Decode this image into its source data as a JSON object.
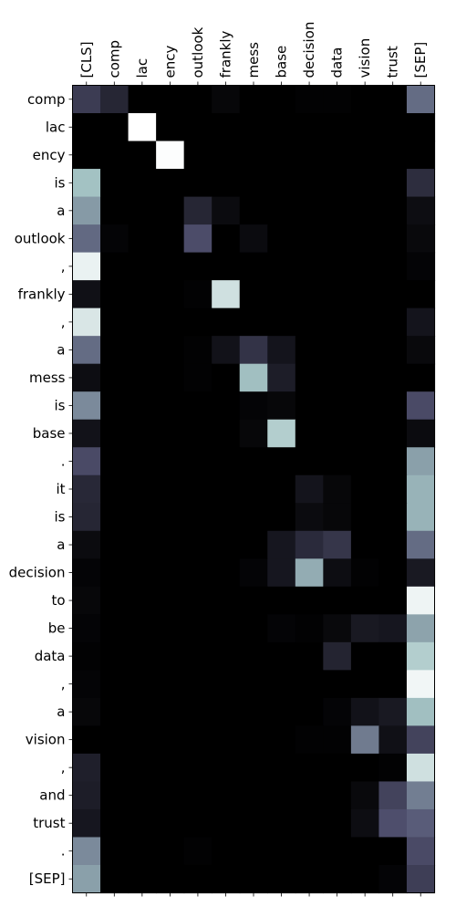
{
  "chart_data": {
    "type": "heatmap",
    "colormap": "bone",
    "x_tokens": [
      "[CLS]",
      "comp",
      "lac",
      "ency",
      "outlook",
      "frankly",
      "mess",
      "base",
      "decision",
      "data",
      "vision",
      "trust",
      "[SEP]"
    ],
    "y_tokens": [
      "comp",
      "lac",
      "ency",
      "is",
      "a",
      "outlook",
      ",",
      "frankly",
      ",",
      "a",
      "mess",
      "is",
      "base",
      ".",
      "it",
      "is",
      "a",
      "decision",
      "to",
      "be",
      "data",
      ",",
      "a",
      "vision",
      ",",
      "and",
      "trust",
      ".",
      "[SEP]"
    ],
    "value_range": [
      0,
      1
    ],
    "values": [
      [
        0.27,
        0.17,
        0.0,
        0.0,
        0.0,
        0.03,
        0.0,
        0.0,
        0.01,
        0.01,
        0.0,
        0.0,
        0.45
      ],
      [
        0.0,
        0.0,
        1.0,
        0.0,
        0.0,
        0.0,
        0.0,
        0.0,
        0.0,
        0.0,
        0.0,
        0.0,
        0.0
      ],
      [
        0.0,
        0.0,
        0.0,
        0.99,
        0.0,
        0.0,
        0.0,
        0.0,
        0.0,
        0.0,
        0.0,
        0.0,
        0.0
      ],
      [
        0.73,
        0.0,
        0.0,
        0.0,
        0.0,
        0.0,
        0.0,
        0.0,
        0.0,
        0.0,
        0.0,
        0.0,
        0.2
      ],
      [
        0.6,
        0.0,
        0.0,
        0.0,
        0.17,
        0.05,
        0.0,
        0.0,
        0.0,
        0.0,
        0.0,
        0.0,
        0.06
      ],
      [
        0.44,
        0.02,
        0.0,
        0.0,
        0.34,
        0.0,
        0.05,
        0.0,
        0.0,
        0.0,
        0.0,
        0.0,
        0.04
      ],
      [
        0.94,
        0.0,
        0.0,
        0.0,
        0.0,
        0.0,
        0.0,
        0.0,
        0.0,
        0.0,
        0.0,
        0.0,
        0.02
      ],
      [
        0.07,
        0.0,
        0.0,
        0.0,
        0.01,
        0.86,
        0.0,
        0.0,
        0.0,
        0.0,
        0.0,
        0.0,
        0.0
      ],
      [
        0.89,
        0.0,
        0.0,
        0.0,
        0.0,
        0.0,
        0.0,
        0.0,
        0.0,
        0.0,
        0.0,
        0.0,
        0.09
      ],
      [
        0.45,
        0.0,
        0.0,
        0.0,
        0.01,
        0.08,
        0.23,
        0.09,
        0.0,
        0.0,
        0.0,
        0.0,
        0.04
      ],
      [
        0.06,
        0.0,
        0.0,
        0.0,
        0.01,
        0.0,
        0.72,
        0.13,
        0.0,
        0.0,
        0.0,
        0.0,
        0.0
      ],
      [
        0.55,
        0.0,
        0.0,
        0.0,
        0.0,
        0.0,
        0.02,
        0.03,
        0.0,
        0.0,
        0.0,
        0.0,
        0.33
      ],
      [
        0.08,
        0.0,
        0.0,
        0.0,
        0.0,
        0.0,
        0.03,
        0.78,
        0.0,
        0.0,
        0.0,
        0.0,
        0.05
      ],
      [
        0.33,
        0.0,
        0.0,
        0.0,
        0.0,
        0.0,
        0.0,
        0.0,
        0.0,
        0.0,
        0.0,
        0.0,
        0.62
      ],
      [
        0.18,
        0.0,
        0.0,
        0.0,
        0.0,
        0.0,
        0.0,
        0.0,
        0.09,
        0.03,
        0.0,
        0.0,
        0.68
      ],
      [
        0.17,
        0.0,
        0.0,
        0.0,
        0.0,
        0.0,
        0.0,
        0.0,
        0.05,
        0.03,
        0.0,
        0.0,
        0.68
      ],
      [
        0.05,
        0.0,
        0.0,
        0.0,
        0.0,
        0.0,
        0.0,
        0.1,
        0.19,
        0.24,
        0.0,
        0.0,
        0.45
      ],
      [
        0.02,
        0.0,
        0.0,
        0.0,
        0.0,
        0.0,
        0.02,
        0.1,
        0.66,
        0.06,
        0.01,
        0.0,
        0.11
      ],
      [
        0.03,
        0.0,
        0.0,
        0.0,
        0.0,
        0.0,
        0.0,
        0.0,
        0.0,
        0.0,
        0.0,
        0.0,
        0.95
      ],
      [
        0.02,
        0.0,
        0.0,
        0.0,
        0.0,
        0.0,
        0.0,
        0.02,
        0.01,
        0.04,
        0.11,
        0.1,
        0.63
      ],
      [
        0.01,
        0.0,
        0.0,
        0.0,
        0.0,
        0.0,
        0.0,
        0.0,
        0.0,
        0.16,
        0.0,
        0.0,
        0.78
      ],
      [
        0.02,
        0.0,
        0.0,
        0.0,
        0.0,
        0.0,
        0.0,
        0.0,
        0.0,
        0.0,
        0.0,
        0.0,
        0.96
      ],
      [
        0.03,
        0.0,
        0.0,
        0.0,
        0.0,
        0.0,
        0.0,
        0.0,
        0.0,
        0.02,
        0.08,
        0.11,
        0.72
      ],
      [
        0.0,
        0.0,
        0.0,
        0.0,
        0.0,
        0.0,
        0.0,
        0.0,
        0.01,
        0.01,
        0.5,
        0.07,
        0.3
      ],
      [
        0.14,
        0.0,
        0.0,
        0.0,
        0.0,
        0.0,
        0.0,
        0.0,
        0.0,
        0.0,
        0.0,
        0.01,
        0.86
      ],
      [
        0.13,
        0.0,
        0.0,
        0.0,
        0.0,
        0.0,
        0.0,
        0.0,
        0.0,
        0.0,
        0.04,
        0.3,
        0.51
      ],
      [
        0.1,
        0.0,
        0.0,
        0.0,
        0.0,
        0.0,
        0.0,
        0.0,
        0.0,
        0.0,
        0.06,
        0.35,
        0.4
      ],
      [
        0.55,
        0.0,
        0.0,
        0.0,
        0.01,
        0.0,
        0.0,
        0.0,
        0.0,
        0.0,
        0.0,
        0.0,
        0.33
      ],
      [
        0.62,
        0.0,
        0.0,
        0.0,
        0.0,
        0.0,
        0.0,
        0.0,
        0.0,
        0.0,
        0.0,
        0.02,
        0.28
      ]
    ],
    "grid": false,
    "x_tick_position": "top",
    "x_tick_rotation": "vertical",
    "legend": "none"
  }
}
